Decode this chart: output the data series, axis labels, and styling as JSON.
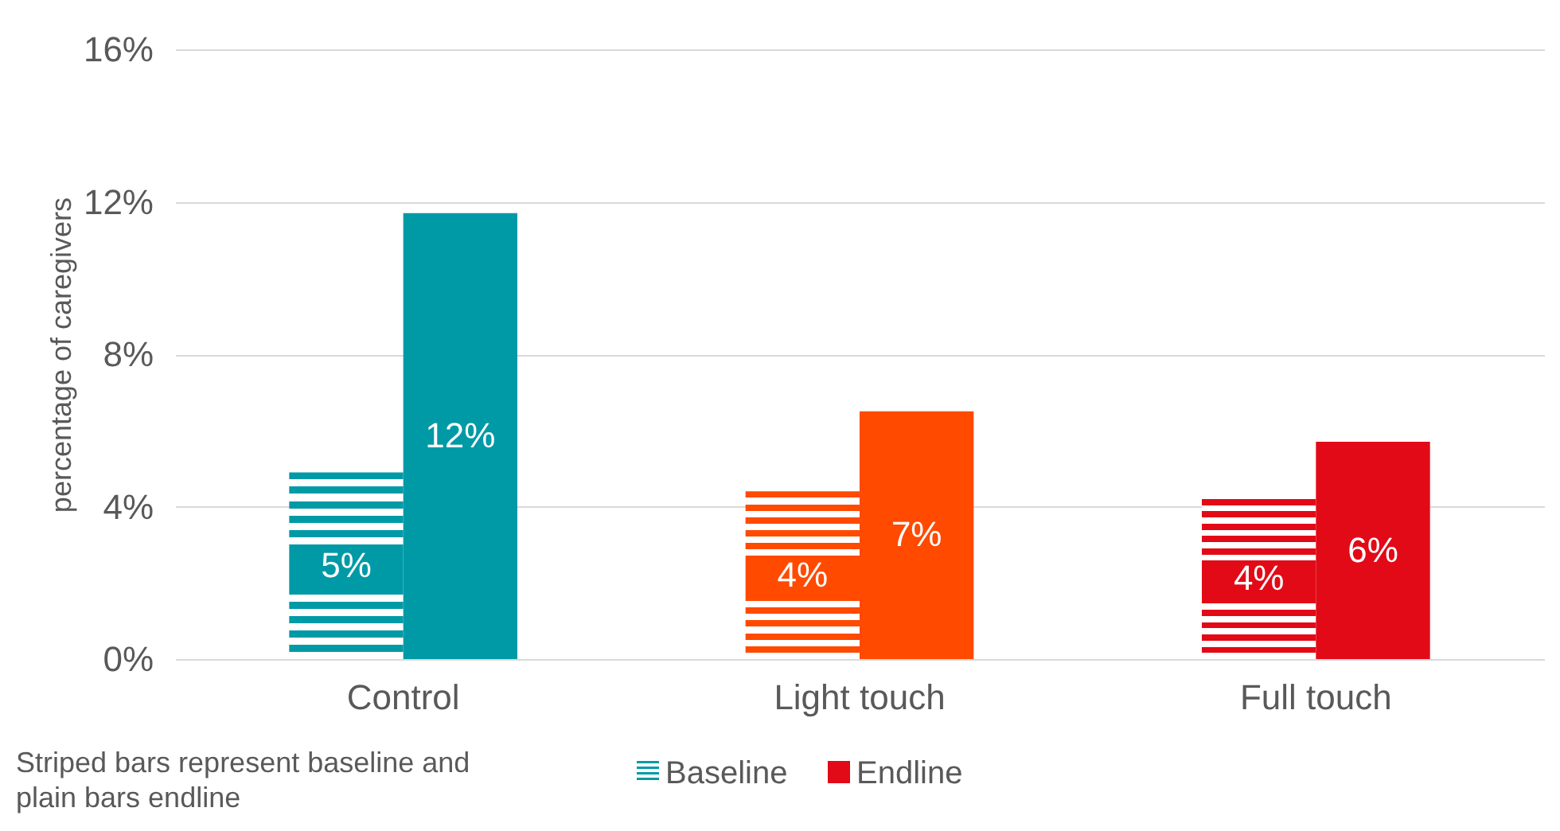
{
  "chart_data": {
    "type": "bar",
    "categories": [
      "Control",
      "Light touch",
      "Full touch"
    ],
    "ylabel": "percentage of caregivers",
    "series": [
      {
        "name": "Baseline",
        "color": "#009aa6",
        "colors": [
          "#009aa6",
          "#ff4a00",
          "#e20a17"
        ],
        "values": [
          4.9,
          4.4,
          4.2
        ],
        "value_labels": [
          "5%",
          "4%",
          "4%"
        ]
      },
      {
        "name": "Endline",
        "color": "#e20a17",
        "colors": [
          "#009aa6",
          "#ff4a00",
          "#e20a17"
        ],
        "values": [
          11.7,
          6.5,
          5.7
        ],
        "value_labels": [
          "12%",
          "7%",
          "6%"
        ]
      }
    ],
    "ylim": [
      0,
      16
    ],
    "yticks": [
      {
        "value": 0,
        "label": "0%"
      },
      {
        "value": 4,
        "label": "4%"
      },
      {
        "value": 8,
        "label": "8%"
      },
      {
        "value": 12,
        "label": "12%"
      },
      {
        "value": 16,
        "label": "16%"
      }
    ],
    "grid": "y",
    "legend": "bottom",
    "annotations": [
      "Striped bars represent baseline and plain bars endline"
    ]
  }
}
